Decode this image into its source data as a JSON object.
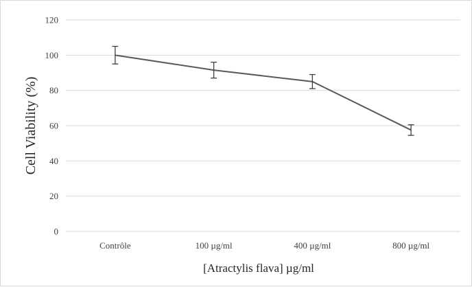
{
  "chart_data": {
    "type": "line",
    "title": "",
    "xlabel": "[Atractylis flava] µg/ml",
    "ylabel": "Cell Viability (%)",
    "categories": [
      "Contrôle",
      "100 µg/ml",
      "400 µg/ml",
      "800 µg/ml"
    ],
    "series": [
      {
        "values": [
          100,
          91.5,
          85,
          57.5
        ],
        "errors": [
          5,
          4.5,
          4,
          3
        ]
      }
    ],
    "ylim": [
      0,
      120
    ],
    "yticks": [
      "0",
      "20",
      "40",
      "60",
      "80",
      "100",
      "120"
    ],
    "grid": true,
    "legend": "none",
    "colors": {
      "line": "#595959",
      "grid": "#d9d9d9",
      "text": "#404040"
    }
  }
}
